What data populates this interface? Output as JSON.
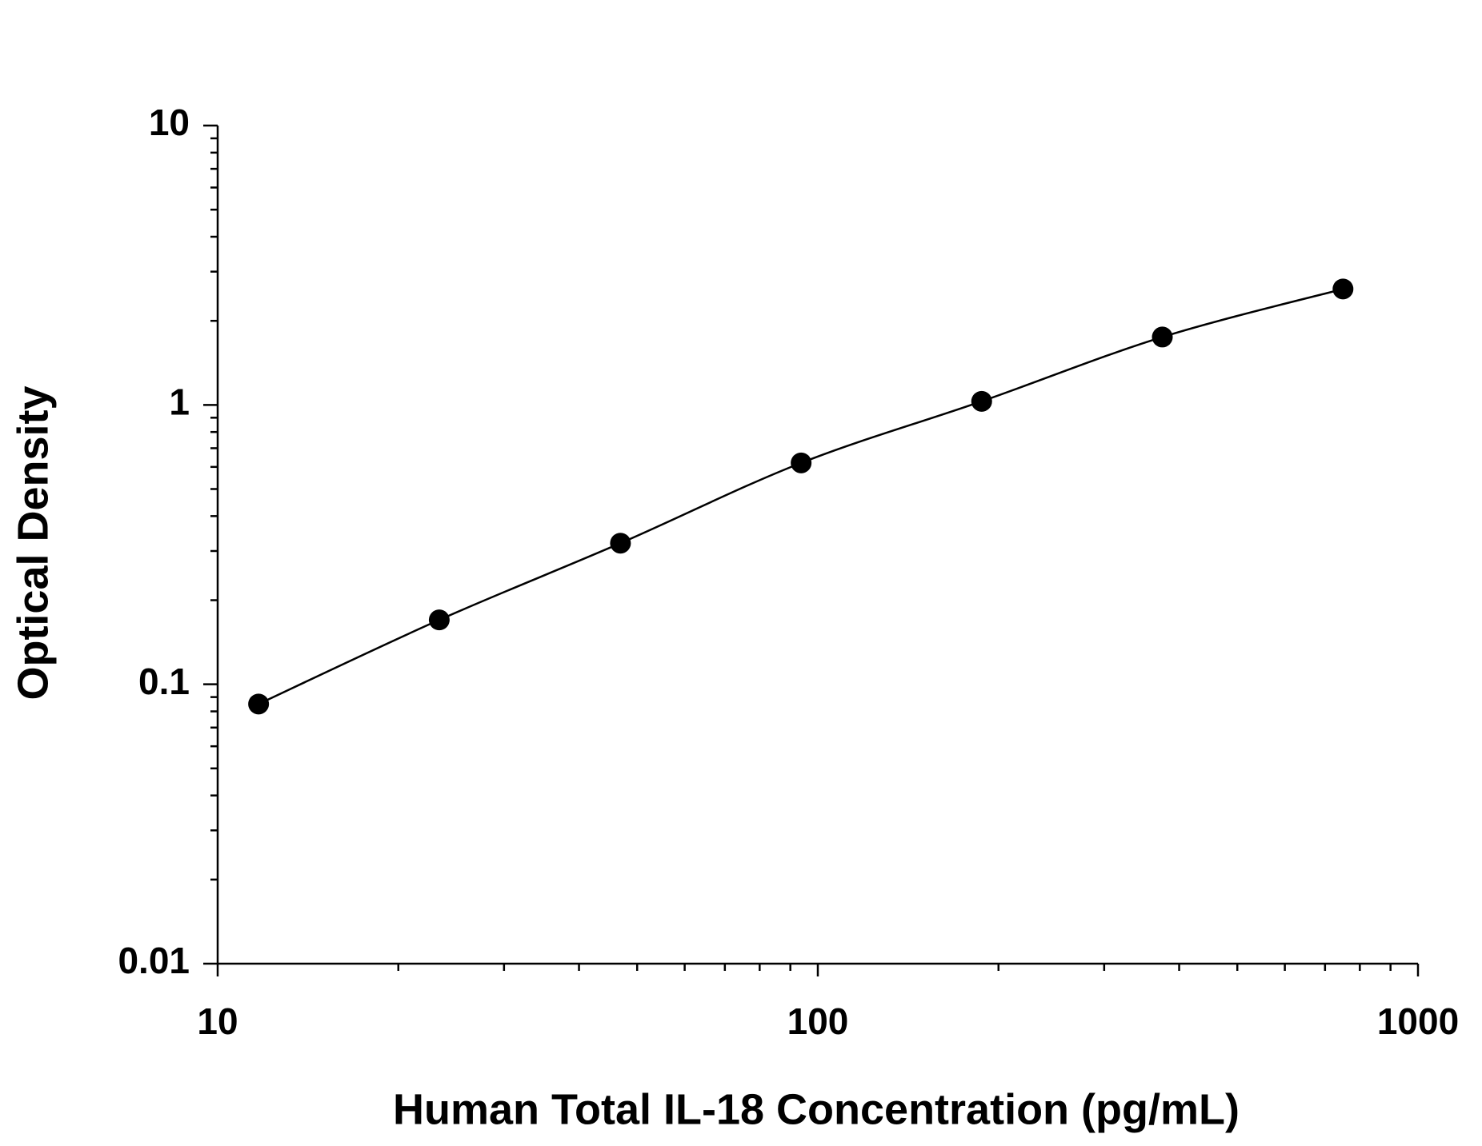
{
  "chart_data": {
    "type": "line",
    "x_label": "Human Total IL-18 Concentration (pg/mL)",
    "y_label": "Optical Density",
    "x": [
      11.7,
      23.4,
      46.9,
      93.8,
      187.5,
      375,
      750
    ],
    "series": [
      {
        "color": "#000000",
        "values": [
          0.085,
          0.17,
          0.32,
          0.62,
          1.03,
          1.75,
          2.6
        ]
      }
    ],
    "xlim": [
      10,
      1000
    ],
    "xticks": [
      10,
      100,
      1000
    ],
    "ylim": [
      0.01,
      10
    ],
    "yticks": [
      0.01,
      0.1,
      1,
      10
    ],
    "xscale": "log",
    "yscale": "log",
    "grid": false
  }
}
